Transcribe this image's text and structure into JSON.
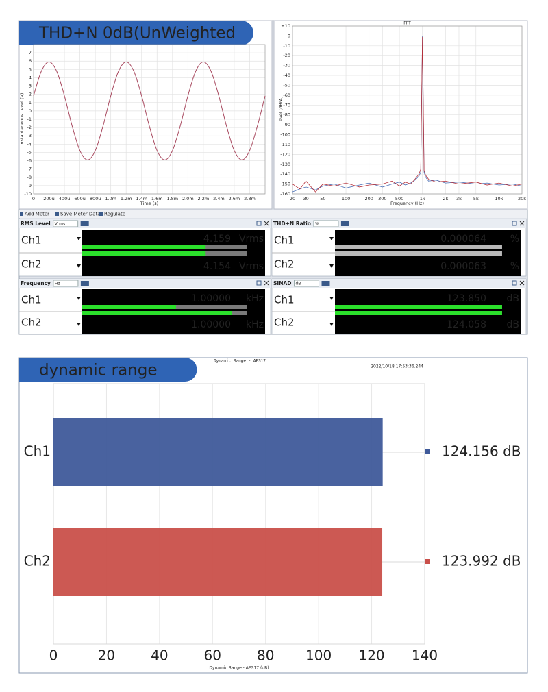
{
  "banners": [
    "THD+N 0dB(UnWeighted",
    "dynamic range"
  ],
  "toolbar": [
    "Add Meter",
    "Save Meter Data",
    "Regulate"
  ],
  "meters": [
    {
      "title": "RMS Level",
      "unit_select": "Vrms",
      "rows": [
        {
          "channel": "Ch1",
          "value": "4.159",
          "unit": "Vrms"
        },
        {
          "channel": "Ch2",
          "value": "4.154",
          "unit": "Vrms"
        }
      ]
    },
    {
      "title": "THD+N Ratio",
      "unit_select": "%",
      "rows": [
        {
          "channel": "Ch1",
          "value": "0.000064",
          "unit": "%"
        },
        {
          "channel": "Ch2",
          "value": "0.000063",
          "unit": "%"
        }
      ]
    },
    {
      "title": "Frequency",
      "unit_select": "Hz",
      "rows": [
        {
          "channel": "Ch1",
          "value": "1.00000",
          "unit": "kHz"
        },
        {
          "channel": "Ch2",
          "value": "1.00000",
          "unit": "kHz"
        }
      ]
    },
    {
      "title": "SINAD",
      "unit_select": "dB",
      "rows": [
        {
          "channel": "Ch1",
          "value": "123.850",
          "unit": "dB"
        },
        {
          "channel": "Ch2",
          "value": "124.058",
          "unit": "dB"
        }
      ]
    }
  ],
  "chart_data": [
    {
      "type": "line",
      "y_label": "Instantaneous Level (V)",
      "x_label": "Time (s)",
      "color": "#a8495f",
      "grid": true,
      "x": [
        0,
        0.0001,
        0.0002,
        0.0003,
        0.0004,
        0.0005,
        0.0006,
        0.0007,
        0.0008,
        0.0009,
        0.001,
        0.0011,
        0.0012,
        0.0013,
        0.0014,
        0.0015,
        0.0016,
        0.0017,
        0.0018,
        0.0019,
        0.002,
        0.0021,
        0.0022,
        0.0023,
        0.0024,
        0.0025,
        0.0026,
        0.0027,
        0.0028,
        0.0029,
        0.003
      ],
      "values": [
        1.82,
        4.77,
        5.9,
        4.77,
        1.82,
        -1.82,
        -4.77,
        -5.9,
        -4.77,
        -1.82,
        1.82,
        4.77,
        5.9,
        4.77,
        1.82,
        -1.82,
        -4.77,
        -5.9,
        -4.77,
        -1.82,
        1.82,
        4.77,
        5.9,
        4.77,
        1.82,
        -1.82,
        -4.77,
        -5.9,
        -4.77,
        -1.82,
        1.82
      ],
      "xlim": [
        0,
        0.003
      ],
      "xticks": [
        0,
        {
          "value": 0.0002,
          "label": "200u"
        },
        {
          "value": 0.0004,
          "label": "400u"
        },
        {
          "value": 0.0006,
          "label": "600u"
        },
        {
          "value": 0.0008,
          "label": "800u"
        },
        {
          "value": 0.001,
          "label": "1.0m"
        },
        {
          "value": 0.0012,
          "label": "1.2m"
        },
        {
          "value": 0.0014,
          "label": "1.4m"
        },
        {
          "value": 0.0016,
          "label": "1.6m"
        },
        {
          "value": 0.0018,
          "label": "1.8m"
        },
        {
          "value": 0.002,
          "label": "2.0m"
        },
        {
          "value": 0.0022,
          "label": "2.2m"
        },
        {
          "value": 0.0024,
          "label": "2.4m"
        },
        {
          "value": 0.0026,
          "label": "2.6m"
        },
        {
          "value": 0.0028,
          "label": "2.8m"
        }
      ],
      "ylim": [
        -10,
        8
      ],
      "yticks": [
        -10,
        -9,
        -8,
        -7,
        -6,
        -5,
        -4,
        -3,
        -2,
        -1,
        0,
        1,
        2,
        3,
        4,
        5,
        6,
        7
      ]
    },
    {
      "type": "line",
      "title": "FFT",
      "y_label": "Level (dBrA)",
      "x_label": "Frequency (Hz)",
      "log_x": true,
      "grid": true,
      "x": [
        20,
        25,
        30,
        40,
        50,
        70,
        100,
        150,
        200,
        300,
        400,
        500,
        600,
        700,
        800,
        900,
        950,
        1000,
        1050,
        1100,
        1200,
        1500,
        2000,
        3000,
        5000,
        7000,
        10000,
        15000,
        20000
      ],
      "series": [
        {
          "color": "#4a6fb5",
          "values": [
            -158,
            -155,
            -153,
            -156,
            -152,
            -150,
            -154,
            -151,
            -149,
            -153,
            -150,
            -148,
            -151,
            -149,
            -146,
            -142,
            -138,
            0,
            -138,
            -143,
            -147,
            -146,
            -149,
            -148,
            -150,
            -149,
            -151,
            -150,
            -152
          ]
        },
        {
          "color": "#b5303a",
          "values": [
            -150,
            -155,
            -147,
            -158,
            -150,
            -152,
            -149,
            -153,
            -151,
            -150,
            -147,
            -152,
            -148,
            -150,
            -145,
            -140,
            -135,
            -1,
            -136,
            -141,
            -145,
            -148,
            -147,
            -150,
            -148,
            -151,
            -149,
            -152,
            -150
          ]
        }
      ],
      "xlim": [
        20,
        20000
      ],
      "xticks": [
        20,
        30,
        50,
        100,
        200,
        300,
        500,
        {
          "value": 1000,
          "label": "1k"
        },
        {
          "value": 2000,
          "label": "2k"
        },
        {
          "value": 3000,
          "label": "3k"
        },
        {
          "value": 5000,
          "label": "5k"
        },
        {
          "value": 10000,
          "label": "10k"
        },
        {
          "value": 20000,
          "label": "20k"
        }
      ],
      "ylim": [
        -160,
        10
      ],
      "yticks": [
        {
          "value": 10,
          "label": "+10"
        },
        0,
        -10,
        -20,
        -30,
        -40,
        -50,
        -60,
        -70,
        -80,
        -90,
        -100,
        -110,
        -120,
        -130,
        -140,
        -150,
        -160
      ]
    },
    {
      "type": "bar",
      "orientation": "horizontal",
      "title": "Dynamic Range - AES17",
      "timestamp": "2022/10/18 17:53:36.244",
      "x_label": "Dynamic Range - AES17 (dB)",
      "grid": true,
      "categories": [
        "Ch1",
        "Ch2"
      ],
      "values": [
        124.156,
        123.992
      ],
      "value_labels": [
        "124.156 dB",
        "123.992 dB"
      ],
      "colors": [
        "#3f5a9a",
        "#c9504a"
      ],
      "xlim": [
        0,
        140
      ],
      "xticks": [
        0,
        20,
        40,
        60,
        80,
        100,
        120,
        140
      ]
    }
  ]
}
